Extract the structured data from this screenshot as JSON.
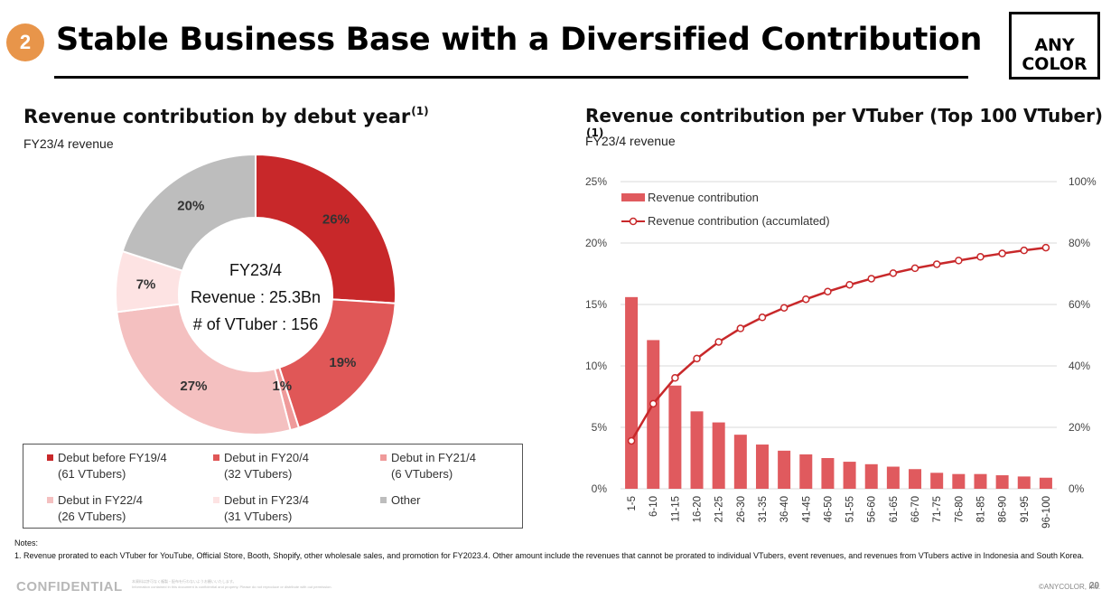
{
  "header": {
    "section_number": "2",
    "title": "Stable Business Base with a Diversified Contribution",
    "logo_line1": "ANY",
    "logo_line2": "COLOR"
  },
  "left_panel": {
    "title": "Revenue contribution by debut year",
    "footnote_ref": "(1)",
    "subtitle": "FY23/4 revenue",
    "center_lines": [
      "FY23/4",
      "Revenue : 25.3Bn",
      "# of VTuber : 156"
    ],
    "legend": [
      {
        "label": "Debut  before FY19/4",
        "count": "(61 VTubers)",
        "color": "#c8282a"
      },
      {
        "label": "Debut in FY20/4",
        "count": "(32 VTubers)",
        "color": "#e05757"
      },
      {
        "label": "Debut in FY21/4",
        "count": "(6 VTubers)",
        "color": "#ef9a9a"
      },
      {
        "label": "Debut in FY22/4",
        "count": "(26 VTubers)",
        "color": "#f4c0c0"
      },
      {
        "label": "Debut in FY23/4",
        "count": "(31 VTubers)",
        "color": "#fde3e3"
      },
      {
        "label": "Other",
        "count": "",
        "color": "#bdbdbd"
      }
    ]
  },
  "right_panel": {
    "title": "Revenue contribution per VTuber (Top 100 VTuber)",
    "footnote_ref": "(1)",
    "subtitle": "FY23/4 revenue",
    "legend_bar": "Revenue contribution",
    "legend_line": "Revenue contribution (accumlated)"
  },
  "chart_data": [
    {
      "type": "pie",
      "categories": [
        "Debut  before FY19/4",
        "Debut in FY20/4",
        "Debut in FY21/4",
        "Debut in FY22/4",
        "Debut in FY23/4",
        "Other"
      ],
      "values": [
        26,
        19,
        1,
        27,
        7,
        20
      ],
      "labels": [
        "26%",
        "19%",
        "1%",
        "27%",
        "7%",
        "20%"
      ],
      "colors": [
        "#c8282a",
        "#e05757",
        "#ef9a9a",
        "#f4c0c0",
        "#fde3e3",
        "#bdbdbd"
      ]
    },
    {
      "type": "bar",
      "categories": [
        "1-5",
        "6-10",
        "11-15",
        "16-20",
        "21-25",
        "26-30",
        "31-35",
        "36-40",
        "41-45",
        "46-50",
        "51-55",
        "56-60",
        "61-65",
        "66-70",
        "71-75",
        "76-80",
        "81-85",
        "86-90",
        "91-95",
        "96-100"
      ],
      "series": [
        {
          "name": "Revenue contribution",
          "axis": "left",
          "color": "#e05a5e",
          "values": [
            15.6,
            12.1,
            8.4,
            6.3,
            5.4,
            4.4,
            3.6,
            3.1,
            2.8,
            2.5,
            2.2,
            2.0,
            1.8,
            1.6,
            1.3,
            1.2,
            1.2,
            1.1,
            1.0,
            0.9
          ]
        },
        {
          "name": "Revenue contribution (accumlated)",
          "axis": "right",
          "type": "line",
          "color": "#c8282a",
          "values": [
            15.6,
            27.7,
            36.1,
            42.4,
            47.8,
            52.2,
            55.8,
            58.9,
            61.7,
            64.2,
            66.4,
            68.4,
            70.2,
            71.8,
            73.1,
            74.3,
            75.5,
            76.6,
            77.6,
            78.5
          ]
        }
      ],
      "y_left_ticks": [
        "0%",
        "5%",
        "10%",
        "15%",
        "20%",
        "25%"
      ],
      "y_right_ticks": [
        "0%",
        "20%",
        "40%",
        "60%",
        "80%",
        "100%"
      ],
      "ylim_left": [
        0,
        25
      ],
      "ylim_right": [
        0,
        100
      ],
      "grid": true,
      "legend_position": "top-left"
    }
  ],
  "footer": {
    "notes_label": "Notes:",
    "note_1": "1. Revenue prorated to each VTuber for YouTube, Official Store, Booth, Shopify, other wholesale sales, and promotion for FY2023.4. Other amount include the revenues that cannot be prorated to individual VTubers, event revenues, and revenues from VTubers active in Indonesia and South Korea.",
    "confidential": "CONFIDENTIAL",
    "fine_print_1": "本資料は許可なく複製・配布を行わないようお願いいたします。",
    "fine_print_2": "Information contained in this document is confidential and property. Please do not reproduce or distribute with out permission.",
    "copyright": "©ANYCOLOR, Inc.",
    "page_number": "20"
  }
}
